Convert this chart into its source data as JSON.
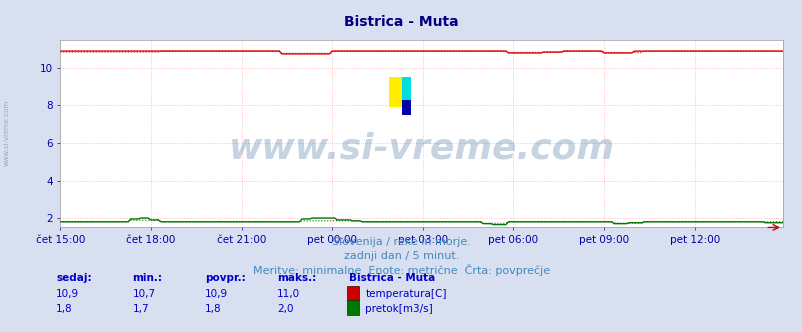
{
  "title": "Bistrica - Muta",
  "title_color": "#000080",
  "title_fontsize": 10,
  "bg_color": "#d8dff0",
  "plot_bg_color": "#ffffff",
  "grid_color": "#ffb0b0",
  "grid_color_v": "#ffb0b0",
  "x_labels": [
    "čet 15:00",
    "čet 18:00",
    "čet 21:00",
    "pet 00:00",
    "pet 03:00",
    "pet 06:00",
    "pet 09:00",
    "pet 12:00"
  ],
  "x_ticks_pos": [
    0,
    36,
    72,
    108,
    144,
    180,
    216,
    252
  ],
  "n_points": 288,
  "ylim": [
    1.5,
    11.5
  ],
  "yticks": [
    2,
    4,
    6,
    8,
    10
  ],
  "temp_color": "#dd0000",
  "temp_avg_color": "#dd0000",
  "flow_color": "#007700",
  "flow_avg_color": "#007700",
  "watermark": "www.si-vreme.com",
  "watermark_color": "#336699",
  "watermark_alpha": 0.28,
  "watermark_fontsize": 26,
  "footer_line1": "Slovenija / reke in morje.",
  "footer_line2": "zadnji dan / 5 minut.",
  "footer_line3": "Meritve: minimalne  Enote: metrične  Črta: povprečje",
  "footer_color": "#4488bb",
  "footer_fontsize": 8,
  "label_color": "#0000aa",
  "left_label": "www.si-vreme.com",
  "left_label_color": "#6699bb",
  "temp_value": "10,9",
  "temp_min": "10,7",
  "temp_max": "11,0",
  "temp_avg": "10,9",
  "flow_value": "1,8",
  "flow_min": "1,7",
  "flow_max": "2,0",
  "flow_avg": "1,8",
  "stat_label_color": "#0000cc",
  "stat_value_color": "#0000cc",
  "legend_title": "Bistrica - Muta",
  "legend_temp_label": "temperatura[C]",
  "legend_flow_label": "pretok[m3/s]"
}
